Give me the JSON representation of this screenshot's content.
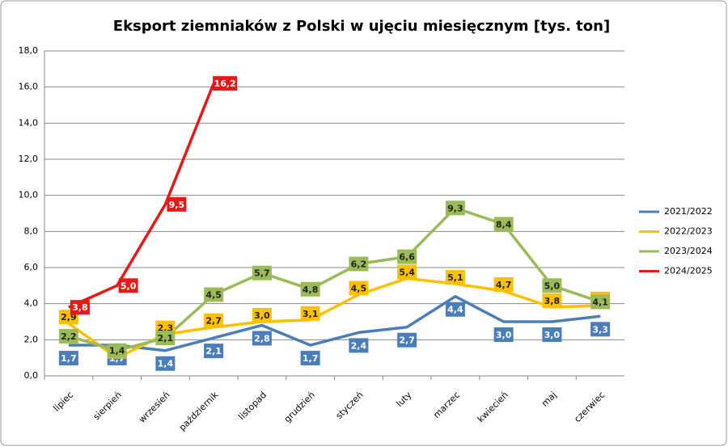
{
  "chart_data": {
    "type": "line",
    "title": "Eksport ziemniaków z Polski w ujęciu miesięcznym [tys. ton]",
    "categories": [
      "lipiec",
      "sierpień",
      "wrzesień",
      "październik",
      "listopad",
      "grudzień",
      "styczeń",
      "luty",
      "marzec",
      "kwiecień",
      "maj",
      "czerwiec"
    ],
    "series": [
      {
        "name": "2021/2022",
        "color": "#4a7ebb",
        "values": [
          1.7,
          1.7,
          1.4,
          2.1,
          2.8,
          1.7,
          2.4,
          2.7,
          4.4,
          3.0,
          3.0,
          3.3
        ],
        "value_labels": [
          "1,7",
          "1,7",
          "1,4",
          "2,1",
          "2,8",
          "1,7",
          "2,4",
          "2,7",
          "4,4",
          "3,0",
          "3,0",
          "3,3"
        ]
      },
      {
        "name": "2022/2023",
        "color": "#ffc000",
        "values": [
          2.9,
          1.0,
          2.3,
          2.7,
          3.0,
          3.1,
          4.5,
          5.4,
          5.1,
          4.7,
          3.8,
          3.9
        ],
        "value_labels": [
          "2,9",
          "1,0",
          "2,3",
          "2,7",
          "3,0",
          "3,1",
          "4,5",
          "5,4",
          "5,1",
          "4,7",
          "3,8",
          "3,9"
        ]
      },
      {
        "name": "2023/2024",
        "color": "#9bbb59",
        "values": [
          2.2,
          1.4,
          2.1,
          4.5,
          5.7,
          4.8,
          6.2,
          6.6,
          9.3,
          8.4,
          5.0,
          4.1
        ],
        "value_labels": [
          "2,2",
          "1,4",
          "2,1",
          "4,5",
          "5,7",
          "4,8",
          "6,2",
          "6,6",
          "9,3",
          "8,4",
          "5,0",
          "4,1"
        ]
      },
      {
        "name": "2024/2025",
        "color": "#e81818",
        "values": [
          3.8,
          5.0,
          9.5,
          16.2,
          null,
          null,
          null,
          null,
          null,
          null,
          null,
          null
        ],
        "value_labels": [
          "3,8",
          "5,0",
          "9,5",
          "16,2",
          null,
          null,
          null,
          null,
          null,
          null,
          null,
          null
        ]
      }
    ],
    "ylim": [
      0,
      18
    ],
    "yticks": [
      {
        "value": 0,
        "label": "0,0"
      },
      {
        "value": 2,
        "label": "2,0"
      },
      {
        "value": 4,
        "label": "4,0"
      },
      {
        "value": 6,
        "label": "6,0"
      },
      {
        "value": 8,
        "label": "8,0"
      },
      {
        "value": 10,
        "label": "10,0"
      },
      {
        "value": 12,
        "label": "12,0"
      },
      {
        "value": 14,
        "label": "14,0"
      },
      {
        "value": 16,
        "label": "16,0"
      },
      {
        "value": 18,
        "label": "18,0"
      }
    ],
    "grid": true,
    "legend": "right"
  }
}
